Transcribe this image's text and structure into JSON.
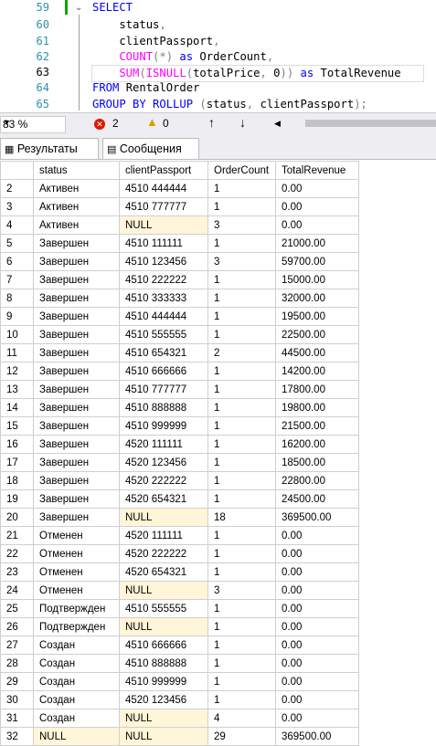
{
  "editor": {
    "line_numbers": [
      "59",
      "60",
      "61",
      "62",
      "63",
      "64",
      "65"
    ],
    "lines": [
      {
        "parts": [
          [
            "kw",
            "SELECT"
          ]
        ]
      },
      {
        "parts": [
          [
            "id",
            "    status"
          ],
          [
            "gr",
            ","
          ]
        ]
      },
      {
        "parts": [
          [
            "id",
            "    clientPassport"
          ],
          [
            "gr",
            ","
          ]
        ]
      },
      {
        "parts": [
          [
            "fn",
            "    COUNT"
          ],
          [
            "gr",
            "(*)"
          ],
          [
            "id",
            " "
          ],
          [
            "kw",
            "as"
          ],
          [
            "id",
            " OrderCount"
          ],
          [
            "gr",
            ","
          ]
        ]
      },
      {
        "parts": [
          [
            "fn",
            "    SUM"
          ],
          [
            "gr",
            "("
          ],
          [
            "fn",
            "ISNULL"
          ],
          [
            "gr",
            "("
          ],
          [
            "id",
            "totalPrice"
          ],
          [
            "gr",
            ", "
          ],
          [
            "num",
            "0"
          ],
          [
            "gr",
            "))"
          ],
          [
            "id",
            " "
          ],
          [
            "kw",
            "as"
          ],
          [
            "id",
            " TotalRevenue"
          ]
        ]
      },
      {
        "parts": [
          [
            "kw",
            "FROM"
          ],
          [
            "id",
            " RentalOrder"
          ]
        ]
      },
      {
        "parts": [
          [
            "kw",
            "GROUP BY ROLLUP"
          ],
          [
            "id",
            " "
          ],
          [
            "gr",
            "("
          ],
          [
            "id",
            "status"
          ],
          [
            "gr",
            ", "
          ],
          [
            "id",
            "clientPassport"
          ],
          [
            "gr",
            ");"
          ]
        ]
      }
    ]
  },
  "statusbar": {
    "zoom": "83 %",
    "errors": "2",
    "warnings": "0"
  },
  "tabs": {
    "results": "Результаты",
    "messages": "Сообщения"
  },
  "grid": {
    "columns": [
      "status",
      "clientPassport",
      "OrderCount",
      "TotalRevenue"
    ],
    "rows": [
      [
        "2",
        "Активен",
        "4510 444444",
        "1",
        "0.00"
      ],
      [
        "3",
        "Активен",
        "4510 777777",
        "1",
        "0.00"
      ],
      [
        "4",
        "Активен",
        "NULL",
        "3",
        "0.00"
      ],
      [
        "5",
        "Завершен",
        "4510 111111",
        "1",
        "21000.00"
      ],
      [
        "6",
        "Завершен",
        "4510 123456",
        "3",
        "59700.00"
      ],
      [
        "7",
        "Завершен",
        "4510 222222",
        "1",
        "15000.00"
      ],
      [
        "8",
        "Завершен",
        "4510 333333",
        "1",
        "32000.00"
      ],
      [
        "9",
        "Завершен",
        "4510 444444",
        "1",
        "19500.00"
      ],
      [
        "10",
        "Завершен",
        "4510 555555",
        "1",
        "22500.00"
      ],
      [
        "11",
        "Завершен",
        "4510 654321",
        "2",
        "44500.00"
      ],
      [
        "12",
        "Завершен",
        "4510 666666",
        "1",
        "14200.00"
      ],
      [
        "13",
        "Завершен",
        "4510 777777",
        "1",
        "17800.00"
      ],
      [
        "14",
        "Завершен",
        "4510 888888",
        "1",
        "19800.00"
      ],
      [
        "15",
        "Завершен",
        "4510 999999",
        "1",
        "21500.00"
      ],
      [
        "16",
        "Завершен",
        "4520 111111",
        "1",
        "16200.00"
      ],
      [
        "17",
        "Завершен",
        "4520 123456",
        "1",
        "18500.00"
      ],
      [
        "18",
        "Завершен",
        "4520 222222",
        "1",
        "22800.00"
      ],
      [
        "19",
        "Завершен",
        "4520 654321",
        "1",
        "24500.00"
      ],
      [
        "20",
        "Завершен",
        "NULL",
        "18",
        "369500.00"
      ],
      [
        "21",
        "Отменен",
        "4520 111111",
        "1",
        "0.00"
      ],
      [
        "22",
        "Отменен",
        "4520 222222",
        "1",
        "0.00"
      ],
      [
        "23",
        "Отменен",
        "4520 654321",
        "1",
        "0.00"
      ],
      [
        "24",
        "Отменен",
        "NULL",
        "3",
        "0.00"
      ],
      [
        "25",
        "Подтвержден",
        "4510 555555",
        "1",
        "0.00"
      ],
      [
        "26",
        "Подтвержден",
        "NULL",
        "1",
        "0.00"
      ],
      [
        "27",
        "Создан",
        "4510 666666",
        "1",
        "0.00"
      ],
      [
        "28",
        "Создан",
        "4510 888888",
        "1",
        "0.00"
      ],
      [
        "29",
        "Создан",
        "4510 999999",
        "1",
        "0.00"
      ],
      [
        "30",
        "Создан",
        "4520 123456",
        "1",
        "0.00"
      ],
      [
        "31",
        "Создан",
        "NULL",
        "4",
        "0.00"
      ],
      [
        "32",
        "NULL",
        "NULL",
        "29",
        "369500.00"
      ]
    ]
  },
  "colors": {
    "null_cell": "#fff5d9",
    "keyword": "#0000ff",
    "function": "#ff00ff"
  }
}
